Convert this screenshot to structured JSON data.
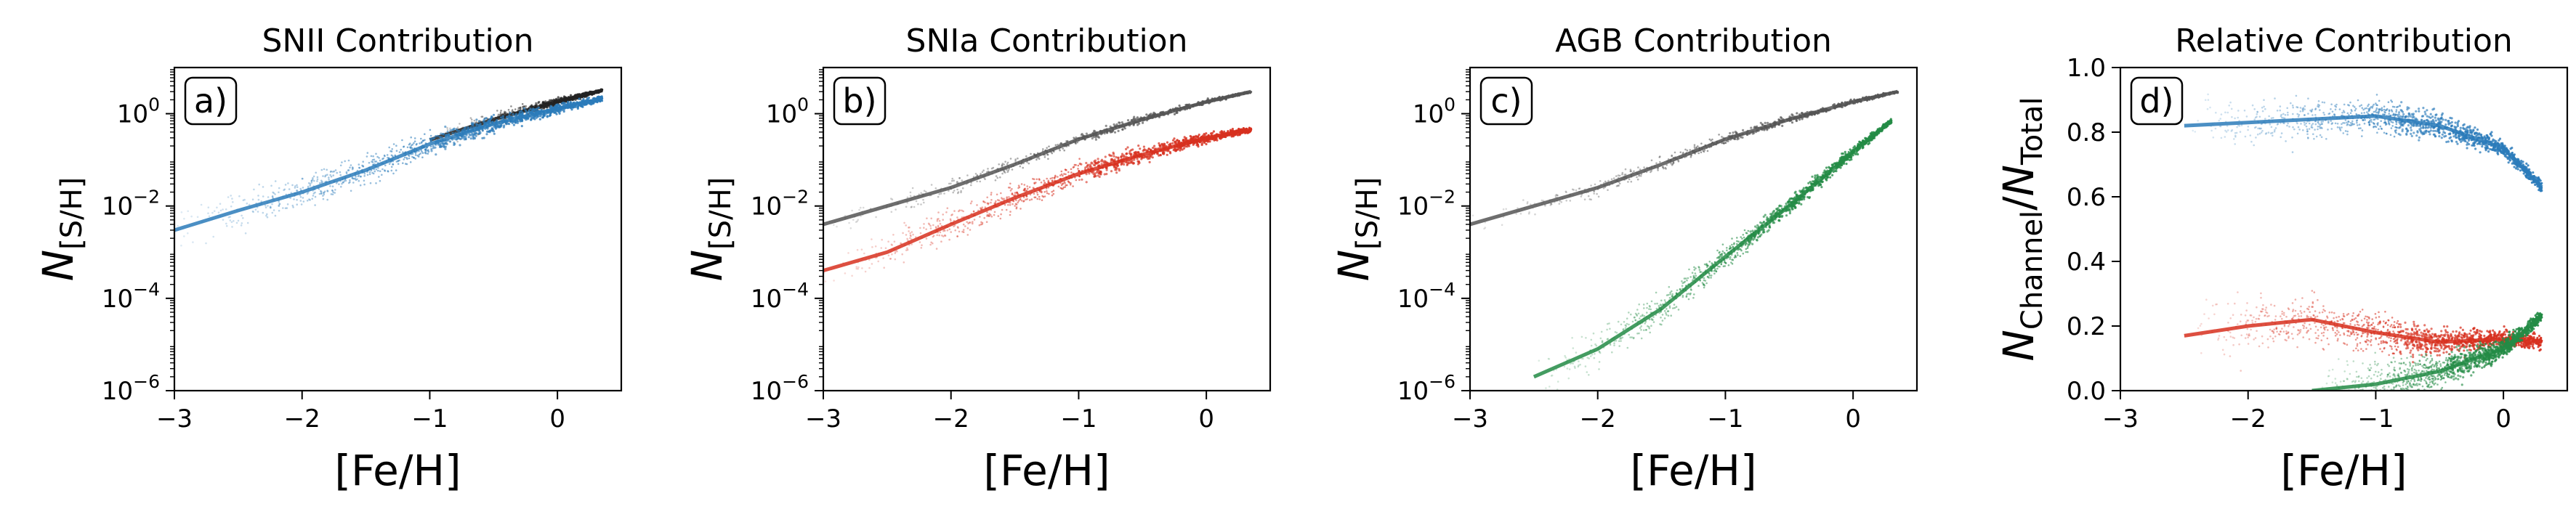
{
  "chart_data": [
    {
      "type": "scatter",
      "title": "SNII Contribution",
      "panel_label": "a)",
      "xlabel": "[Fe/H]",
      "ylabel": {
        "base": "N",
        "sub": "[S/H]"
      },
      "xlim": [
        -3,
        0.5
      ],
      "ylim": [
        1e-06,
        10
      ],
      "yscale": "log",
      "xticks": [
        -3,
        -2,
        -1,
        0
      ],
      "xtick_labels": [
        "−3",
        "−2",
        "−1",
        "0"
      ],
      "yticks": [
        1e-06,
        0.0001,
        0.01,
        1
      ],
      "ytick_labels": [
        {
          "base": "10",
          "exp": "−6"
        },
        {
          "base": "10",
          "exp": "−4"
        },
        {
          "base": "10",
          "exp": "−2"
        },
        {
          "base": "10",
          "exp": "0"
        }
      ],
      "grid": false,
      "series": [
        {
          "role": "total",
          "color": "#222222",
          "x": [
            -1.0,
            -0.5,
            0.0,
            0.35
          ],
          "y": [
            0.27,
            0.75,
            1.8,
            3.2
          ]
        },
        {
          "role": "channel",
          "color": "#2b7bba",
          "x": [
            -3.0,
            -2.5,
            -2.0,
            -1.5,
            -1.0,
            -0.5,
            0.0,
            0.35
          ],
          "y": [
            0.003,
            0.008,
            0.02,
            0.06,
            0.22,
            0.6,
            1.3,
            2.1
          ]
        }
      ]
    },
    {
      "type": "scatter",
      "title": "SNIa Contribution",
      "panel_label": "b)",
      "xlabel": "[Fe/H]",
      "ylabel": {
        "base": "N",
        "sub": "[S/H]"
      },
      "xlim": [
        -3,
        0.5
      ],
      "ylim": [
        1e-06,
        10
      ],
      "yscale": "log",
      "xticks": [
        -3,
        -2,
        -1,
        0
      ],
      "xtick_labels": [
        "−3",
        "−2",
        "−1",
        "0"
      ],
      "yticks": [
        1e-06,
        0.0001,
        0.01,
        1
      ],
      "ytick_labels": [
        {
          "base": "10",
          "exp": "−6"
        },
        {
          "base": "10",
          "exp": "−4"
        },
        {
          "base": "10",
          "exp": "−2"
        },
        {
          "base": "10",
          "exp": "0"
        }
      ],
      "grid": false,
      "series": [
        {
          "role": "total",
          "color": "#555555",
          "x": [
            -3.0,
            -2.5,
            -2.0,
            -1.5,
            -1.0,
            -0.5,
            0.0,
            0.35
          ],
          "y": [
            0.004,
            0.01,
            0.025,
            0.08,
            0.28,
            0.75,
            1.8,
            3.0
          ]
        },
        {
          "role": "channel",
          "color": "#d7301f",
          "x": [
            -3.0,
            -2.5,
            -2.0,
            -1.5,
            -1.0,
            -0.5,
            0.0,
            0.35
          ],
          "y": [
            0.0004,
            0.001,
            0.004,
            0.015,
            0.05,
            0.13,
            0.3,
            0.45
          ]
        }
      ]
    },
    {
      "type": "scatter",
      "title": "AGB Contribution",
      "panel_label": "c)",
      "xlabel": "[Fe/H]",
      "ylabel": {
        "base": "N",
        "sub": "[S/H]"
      },
      "xlim": [
        -3,
        0.5
      ],
      "ylim": [
        1e-06,
        10
      ],
      "yscale": "log",
      "xticks": [
        -3,
        -2,
        -1,
        0
      ],
      "xtick_labels": [
        "−3",
        "−2",
        "−1",
        "0"
      ],
      "yticks": [
        1e-06,
        0.0001,
        0.01,
        1
      ],
      "ytick_labels": [
        {
          "base": "10",
          "exp": "−6"
        },
        {
          "base": "10",
          "exp": "−4"
        },
        {
          "base": "10",
          "exp": "−2"
        },
        {
          "base": "10",
          "exp": "0"
        }
      ],
      "grid": false,
      "series": [
        {
          "role": "total",
          "color": "#555555",
          "x": [
            -3.0,
            -2.5,
            -2.0,
            -1.5,
            -1.0,
            -0.5,
            0.0,
            0.35
          ],
          "y": [
            0.004,
            0.01,
            0.025,
            0.08,
            0.28,
            0.75,
            1.8,
            3.0
          ]
        },
        {
          "role": "channel",
          "color": "#238b45",
          "x": [
            -2.5,
            -2.0,
            -1.5,
            -1.0,
            -0.5,
            0.0,
            0.3
          ],
          "y": [
            2e-06,
            8e-06,
            6e-05,
            0.0008,
            0.01,
            0.15,
            0.7
          ]
        }
      ]
    },
    {
      "type": "scatter",
      "title": "Relative Contribution",
      "panel_label": "d)",
      "xlabel": "[Fe/H]",
      "ylabel": {
        "base": "N",
        "sub": "Channel",
        "over": "N",
        "over_sub": "Total"
      },
      "xlim": [
        -3,
        0.5
      ],
      "ylim": [
        0,
        1.0
      ],
      "yscale": "linear",
      "xticks": [
        -3,
        -2,
        -1,
        0
      ],
      "xtick_labels": [
        "−3",
        "−2",
        "−1",
        "0"
      ],
      "yticks": [
        0.0,
        0.2,
        0.4,
        0.6,
        0.8,
        1.0
      ],
      "ytick_labels": [
        "0.0",
        "0.2",
        "0.4",
        "0.6",
        "0.8",
        "1.0"
      ],
      "grid": false,
      "series": [
        {
          "role": "SNII",
          "color": "#2b7bba",
          "x": [
            -2.5,
            -2.0,
            -1.5,
            -1.0,
            -0.5,
            0.0,
            0.3
          ],
          "y": [
            0.82,
            0.83,
            0.84,
            0.85,
            0.82,
            0.75,
            0.63
          ]
        },
        {
          "role": "SNIa",
          "color": "#d7301f",
          "x": [
            -2.5,
            -2.0,
            -1.5,
            -1.0,
            -0.5,
            0.0,
            0.3
          ],
          "y": [
            0.17,
            0.2,
            0.22,
            0.18,
            0.15,
            0.16,
            0.15
          ]
        },
        {
          "role": "AGB",
          "color": "#238b45",
          "x": [
            -1.5,
            -1.0,
            -0.5,
            0.0,
            0.3
          ],
          "y": [
            0.0,
            0.02,
            0.06,
            0.13,
            0.23
          ]
        }
      ]
    }
  ]
}
